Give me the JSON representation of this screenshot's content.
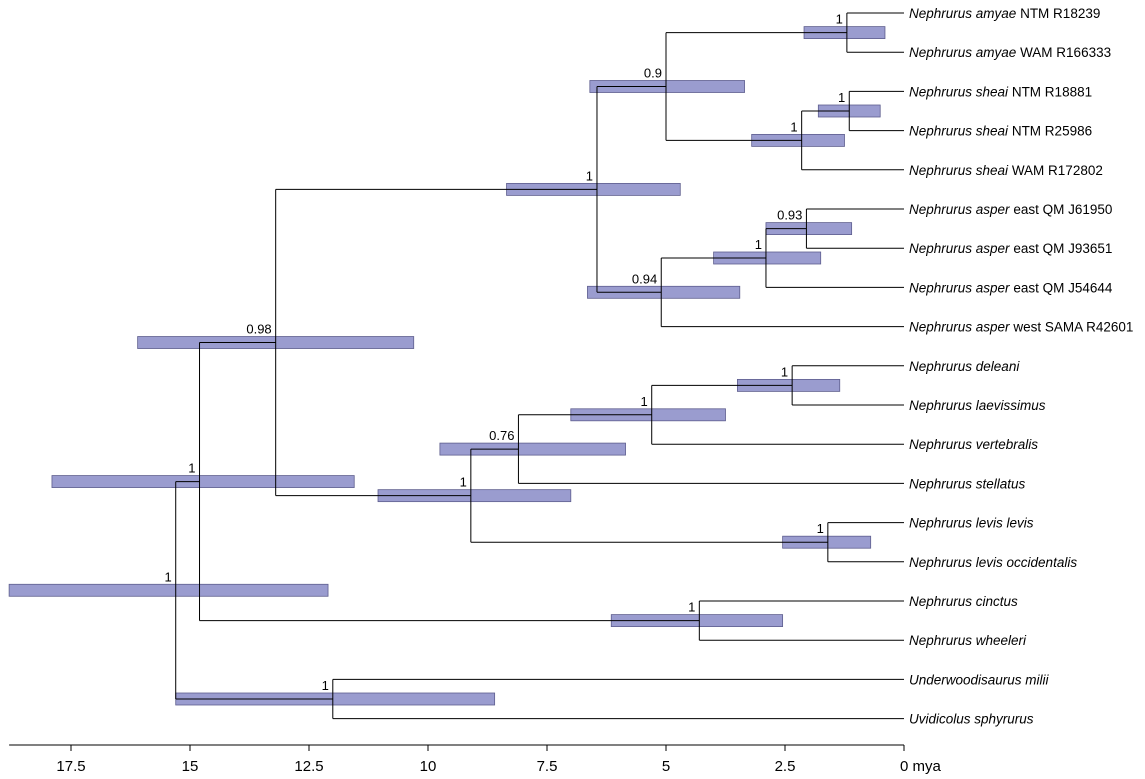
{
  "axis": {
    "unit": "mya",
    "ticks": [
      {
        "value": 17.5,
        "label": "17.5"
      },
      {
        "value": 15,
        "label": "15"
      },
      {
        "value": 12.5,
        "label": "12.5"
      },
      {
        "value": 10,
        "label": "10"
      },
      {
        "value": 7.5,
        "label": "7.5"
      },
      {
        "value": 5,
        "label": "5"
      },
      {
        "value": 2.5,
        "label": "2.5"
      },
      {
        "value": 0,
        "label": "0 mya"
      }
    ]
  },
  "tips": [
    {
      "genus": "Nephrurus amyae",
      "rest": " NTM R18239"
    },
    {
      "genus": "Nephrurus amyae",
      "rest": " WAM R166333"
    },
    {
      "genus": "Nephrurus sheai",
      "rest": " NTM R18881"
    },
    {
      "genus": "Nephrurus sheai",
      "rest": " NTM R25986"
    },
    {
      "genus": "Nephrurus sheai",
      "rest": " WAM R172802"
    },
    {
      "genus": "Nephrurus asper",
      "rest": " east QM J61950"
    },
    {
      "genus": "Nephrurus asper",
      "rest": " east QM J93651"
    },
    {
      "genus": "Nephrurus asper",
      "rest": " east QM J54644"
    },
    {
      "genus": "Nephrurus asper",
      "rest": " west SAMA R42601"
    },
    {
      "genus": "Nephrurus deleani",
      "rest": ""
    },
    {
      "genus": "Nephrurus laevissimus",
      "rest": ""
    },
    {
      "genus": "Nephrurus vertebralis",
      "rest": ""
    },
    {
      "genus": "Nephrurus stellatus",
      "rest": ""
    },
    {
      "genus": "Nephrurus levis levis",
      "rest": ""
    },
    {
      "genus": "Nephrurus levis occidentalis",
      "rest": ""
    },
    {
      "genus": "Nephrurus cinctus",
      "rest": ""
    },
    {
      "genus": "Nephrurus wheeleri",
      "rest": ""
    },
    {
      "genus": "Underwoodisaurus milii",
      "rest": ""
    },
    {
      "genus": "Uvidicolus sphyrurus",
      "rest": ""
    }
  ],
  "nodes": [
    {
      "id": "amyae",
      "age": 1.2,
      "children": [
        "t0",
        "t1"
      ],
      "support": "1",
      "hpd": [
        2.1,
        0.4
      ]
    },
    {
      "id": "sheai_in",
      "age": 1.15,
      "children": [
        "t2",
        "t3"
      ],
      "support": "1",
      "hpd": [
        1.8,
        0.5
      ]
    },
    {
      "id": "sheai",
      "age": 2.15,
      "children": [
        "sheai_in",
        "t4"
      ],
      "support": "1",
      "hpd": [
        3.2,
        1.25
      ]
    },
    {
      "id": "amy_sheai",
      "age": 5.0,
      "children": [
        "amyae",
        "sheai"
      ],
      "support": "0.9",
      "hpd": [
        6.6,
        3.35
      ]
    },
    {
      "id": "asp_a",
      "age": 2.05,
      "children": [
        "t5",
        "t6"
      ],
      "support": "0.93",
      "hpd": [
        2.9,
        1.1
      ]
    },
    {
      "id": "asp_b",
      "age": 2.9,
      "children": [
        "asp_a",
        "t7"
      ],
      "support": "1",
      "hpd": [
        4.0,
        1.75
      ]
    },
    {
      "id": "asper",
      "age": 5.1,
      "children": [
        "asp_b",
        "t8"
      ],
      "support": "0.94",
      "hpd": [
        6.65,
        3.45
      ]
    },
    {
      "id": "knob_upper",
      "age": 6.45,
      "children": [
        "amy_sheai",
        "asper"
      ],
      "support": "1",
      "hpd": [
        8.35,
        4.7
      ]
    },
    {
      "id": "del_lae",
      "age": 2.35,
      "children": [
        "t9",
        "t10"
      ],
      "support": "1",
      "hpd": [
        3.5,
        1.35
      ]
    },
    {
      "id": "dlv",
      "age": 5.3,
      "children": [
        "del_lae",
        "t11"
      ],
      "support": "1",
      "hpd": [
        7.0,
        3.75
      ]
    },
    {
      "id": "dlvs",
      "age": 8.1,
      "children": [
        "dlv",
        "t12"
      ],
      "support": "0.76",
      "hpd": [
        9.75,
        5.85
      ]
    },
    {
      "id": "levis",
      "age": 1.6,
      "children": [
        "t13",
        "t14"
      ],
      "support": "1",
      "hpd": [
        2.55,
        0.7
      ]
    },
    {
      "id": "knob_lower",
      "age": 9.1,
      "children": [
        "dlvs",
        "levis"
      ],
      "support": "1",
      "hpd": [
        11.05,
        7.0
      ]
    },
    {
      "id": "knob",
      "age": 13.2,
      "children": [
        "knob_upper",
        "knob_lower"
      ],
      "support": "0.98",
      "hpd": [
        16.1,
        10.3
      ]
    },
    {
      "id": "cin_whe",
      "age": 4.3,
      "children": [
        "t15",
        "t16"
      ],
      "support": "1",
      "hpd": [
        6.15,
        2.55
      ]
    },
    {
      "id": "nephrurus",
      "age": 14.8,
      "children": [
        "knob",
        "cin_whe"
      ],
      "support": "1",
      "hpd": [
        17.9,
        11.55
      ]
    },
    {
      "id": "outgroup",
      "age": 12.0,
      "children": [
        "t17",
        "t18"
      ],
      "support": "1",
      "hpd": [
        15.3,
        8.6
      ]
    },
    {
      "id": "root",
      "age": 15.3,
      "children": [
        "nephrurus",
        "outgroup"
      ],
      "support": "1",
      "hpd": [
        18.8,
        12.1
      ]
    }
  ]
}
